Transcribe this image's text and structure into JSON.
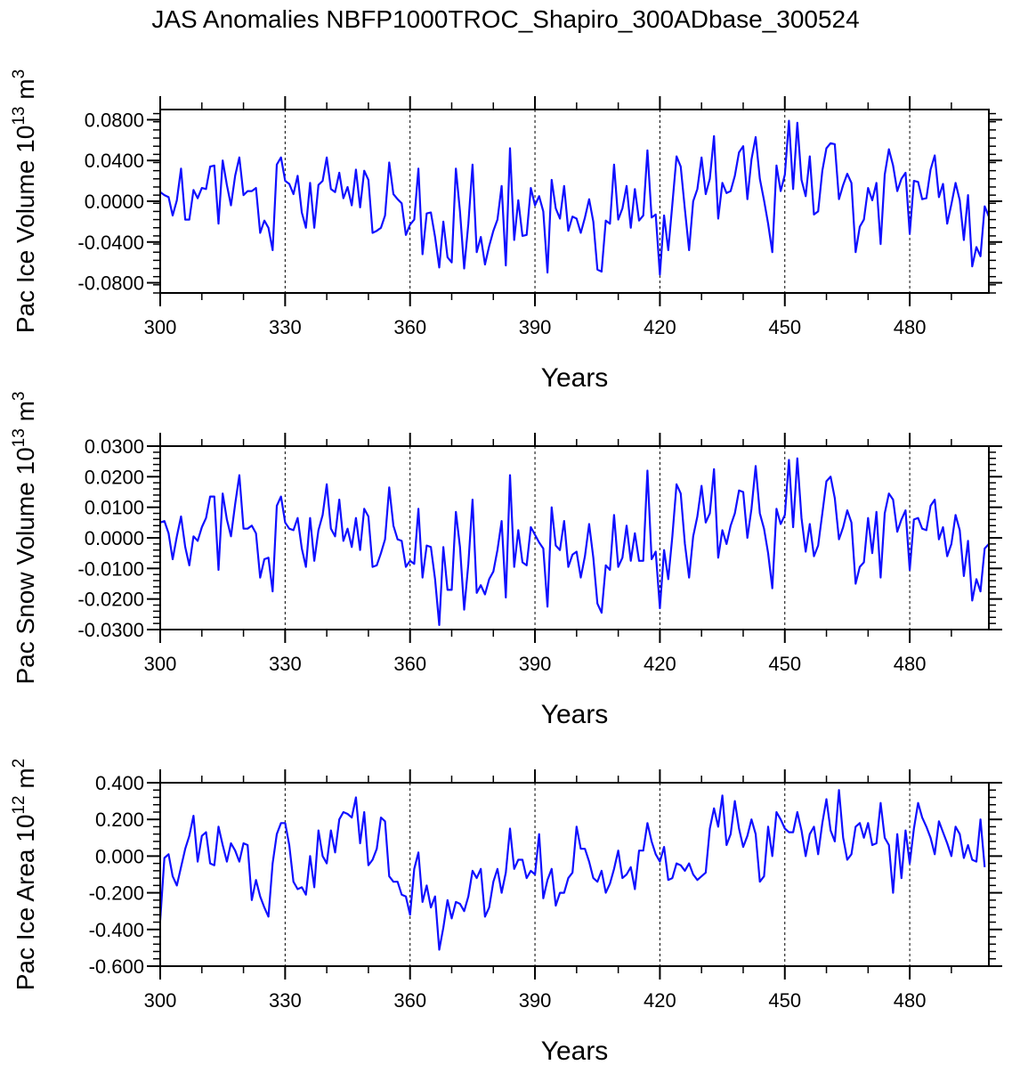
{
  "title": "JAS Anomalies NBFP1000TROC_Shapiro_300ADbase_300524",
  "line_color": "#1010ff",
  "chart_data": [
    {
      "type": "line",
      "ylabel": "Pac Ice Volume 10",
      "ylabel_exp": "13",
      "ylabel_unit": " m",
      "ylabel_unit_exp": "3",
      "xlabel": "Years",
      "xlim": [
        300,
        499
      ],
      "ylim": [
        -0.09,
        0.09
      ],
      "yticks": [
        -0.08,
        -0.04,
        0.0,
        0.04,
        0.08
      ],
      "ytick_labels": [
        "-0.0800",
        "-0.0400",
        "0.0000",
        "0.0400",
        "0.0800"
      ],
      "xticks": [
        300,
        330,
        360,
        390,
        420,
        450,
        480
      ],
      "xtick_labels": [
        "300",
        "330",
        "360",
        "390",
        "420",
        "450",
        "480"
      ],
      "ref_lines": [
        330,
        360,
        390,
        420,
        450,
        480
      ],
      "x_start": 300,
      "series": [
        {
          "name": "Pac Ice Volume",
          "values": [
            0.009,
            0.006,
            0.004,
            -0.014,
            0.001,
            0.032,
            -0.018,
            -0.018,
            0.011,
            0.003,
            0.013,
            0.012,
            0.034,
            0.035,
            -0.022,
            0.04,
            0.016,
            -0.004,
            0.025,
            0.043,
            0.006,
            0.01,
            0.01,
            0.013,
            -0.031,
            -0.019,
            -0.026,
            -0.048,
            0.036,
            0.043,
            0.02,
            0.017,
            0.007,
            0.025,
            -0.011,
            -0.026,
            0.018,
            -0.026,
            0.016,
            0.02,
            0.043,
            0.012,
            0.009,
            0.028,
            0.003,
            0.014,
            -0.004,
            0.031,
            -0.006,
            0.03,
            0.021,
            -0.031,
            -0.029,
            -0.026,
            -0.014,
            0.038,
            0.007,
            0.002,
            -0.002,
            -0.033,
            -0.023,
            -0.018,
            0.032,
            -0.052,
            -0.012,
            -0.011,
            -0.035,
            -0.065,
            -0.02,
            -0.055,
            -0.06,
            0.032,
            -0.01,
            -0.066,
            -0.022,
            0.036,
            -0.05,
            -0.035,
            -0.062,
            -0.044,
            -0.029,
            -0.018,
            0.015,
            -0.063,
            0.052,
            -0.038,
            0.001,
            -0.034,
            -0.033,
            0.013,
            -0.004,
            0.005,
            -0.01,
            -0.07,
            0.021,
            -0.007,
            -0.017,
            0.015,
            -0.029,
            -0.015,
            -0.017,
            -0.031,
            -0.016,
            0.002,
            -0.02,
            -0.067,
            -0.069,
            -0.019,
            -0.022,
            0.036,
            -0.018,
            -0.007,
            0.015,
            -0.026,
            0.012,
            -0.019,
            -0.014,
            0.05,
            -0.016,
            -0.013,
            -0.072,
            -0.014,
            -0.048,
            -0.003,
            0.044,
            0.034,
            -0.008,
            -0.048,
            0.0,
            0.012,
            0.043,
            0.007,
            0.022,
            0.064,
            -0.017,
            0.018,
            0.008,
            0.01,
            0.025,
            0.048,
            0.054,
            0.002,
            0.041,
            0.063,
            0.022,
            0.001,
            -0.022,
            -0.05,
            0.035,
            0.01,
            0.026,
            0.079,
            0.012,
            0.077,
            0.021,
            0.005,
            0.044,
            -0.013,
            -0.01,
            0.03,
            0.052,
            0.057,
            0.056,
            0.002,
            0.016,
            0.027,
            0.018,
            -0.05,
            -0.025,
            -0.018,
            0.013,
            0.001,
            0.018,
            -0.042,
            0.026,
            0.051,
            0.035,
            0.01,
            0.022,
            0.028,
            -0.032,
            0.02,
            0.019,
            0.002,
            0.003,
            0.031,
            0.045,
            0.004,
            0.017,
            -0.022,
            -0.003,
            0.018,
            0.001,
            -0.038,
            0.006,
            -0.064,
            -0.045,
            -0.054,
            -0.005,
            -0.015
          ]
        }
      ]
    },
    {
      "type": "line",
      "ylabel": "Pac Snow Volume 10",
      "ylabel_exp": "13",
      "ylabel_unit": " m",
      "ylabel_unit_exp": "3",
      "xlabel": "Years",
      "xlim": [
        300,
        499
      ],
      "ylim": [
        -0.03,
        0.03
      ],
      "yticks": [
        -0.03,
        -0.02,
        -0.01,
        0.0,
        0.01,
        0.02,
        0.03
      ],
      "ytick_labels": [
        "-0.0300",
        "-0.0200",
        "-0.0100",
        "0.0000",
        "0.0100",
        "0.0200",
        "0.0300"
      ],
      "xticks": [
        300,
        330,
        360,
        390,
        420,
        450,
        480
      ],
      "xtick_labels": [
        "300",
        "330",
        "360",
        "390",
        "420",
        "450",
        "480"
      ],
      "ref_lines": [
        330,
        360,
        390,
        420,
        450,
        480
      ],
      "x_start": 300,
      "series": [
        {
          "name": "Pac Snow Volume",
          "values": [
            0.005,
            0.0055,
            0.0015,
            -0.007,
            0.0005,
            0.007,
            -0.003,
            -0.009,
            0.0005,
            -0.001,
            0.0035,
            0.0065,
            0.0135,
            0.0135,
            -0.0105,
            0.0145,
            0.006,
            0.0005,
            0.011,
            0.0205,
            0.003,
            0.003,
            0.004,
            0.0015,
            -0.013,
            -0.007,
            -0.0065,
            -0.0175,
            0.0105,
            0.0135,
            0.005,
            0.003,
            0.0025,
            0.0065,
            -0.0035,
            -0.0095,
            0.0065,
            -0.0075,
            0.0025,
            0.0075,
            0.0175,
            0.003,
            0.0005,
            0.0125,
            -0.001,
            0.003,
            -0.003,
            0.0065,
            -0.004,
            0.0095,
            0.007,
            -0.0095,
            -0.009,
            -0.005,
            -0.0005,
            0.0165,
            0.004,
            -0.0005,
            -0.001,
            -0.0095,
            -0.0075,
            -0.0085,
            0.0095,
            -0.013,
            -0.0025,
            -0.003,
            -0.0135,
            -0.0285,
            -0.003,
            -0.017,
            -0.017,
            0.0085,
            -0.003,
            -0.0235,
            -0.0085,
            0.0125,
            -0.018,
            -0.0155,
            -0.0185,
            -0.0135,
            -0.011,
            -0.004,
            0.0055,
            -0.0195,
            0.0205,
            -0.0095,
            0.0025,
            -0.008,
            -0.009,
            0.0035,
            0.001,
            -0.0015,
            -0.0035,
            -0.0225,
            0.01,
            -0.0025,
            -0.004,
            0.0055,
            -0.0095,
            -0.0055,
            -0.0045,
            -0.013,
            -0.006,
            0.0045,
            -0.0065,
            -0.0215,
            -0.0245,
            -0.009,
            -0.0105,
            0.0075,
            -0.0095,
            -0.0065,
            0.004,
            -0.0075,
            0.0015,
            -0.0075,
            -0.0075,
            0.022,
            -0.007,
            -0.0045,
            -0.023,
            -0.004,
            -0.0135,
            0.0005,
            0.0175,
            0.0145,
            -0.002,
            -0.013,
            0.0005,
            0.007,
            0.017,
            0.005,
            0.008,
            0.0225,
            -0.0065,
            0.0025,
            -0.002,
            0.004,
            0.008,
            0.0155,
            0.015,
            0.0,
            0.0095,
            0.0235,
            0.008,
            0.003,
            -0.005,
            -0.0165,
            0.0095,
            0.0045,
            0.0075,
            0.0255,
            0.0035,
            0.026,
            0.0065,
            -0.0045,
            0.0045,
            -0.006,
            -0.0025,
            0.008,
            0.0185,
            0.02,
            0.013,
            -0.0005,
            0.0035,
            0.009,
            0.005,
            -0.015,
            -0.0095,
            -0.008,
            0.0065,
            -0.005,
            0.0085,
            -0.013,
            0.008,
            0.0145,
            0.0125,
            0.002,
            0.006,
            0.009,
            -0.0105,
            0.006,
            0.0065,
            0.003,
            0.0025,
            0.0105,
            0.0125,
            -0.0005,
            0.0035,
            -0.006,
            -0.002,
            0.0075,
            0.0025,
            -0.0125,
            -0.001,
            -0.0205,
            -0.0135,
            -0.0175,
            -0.0035,
            -0.002
          ]
        }
      ]
    },
    {
      "type": "line",
      "ylabel": "Pac Ice Area 10",
      "ylabel_exp": "12",
      "ylabel_unit": " m",
      "ylabel_unit_exp": "2",
      "xlabel": "Years",
      "xlim": [
        300,
        499
      ],
      "ylim": [
        -0.6,
        0.4
      ],
      "yticks": [
        -0.6,
        -0.4,
        -0.2,
        0.0,
        0.2,
        0.4
      ],
      "ytick_labels": [
        "-0.600",
        "-0.400",
        "-0.200",
        "0.000",
        "0.200",
        "0.400"
      ],
      "xticks": [
        300,
        330,
        360,
        390,
        420,
        450,
        480
      ],
      "xtick_labels": [
        "300",
        "330",
        "360",
        "390",
        "420",
        "450",
        "480"
      ],
      "ref_lines": [
        330,
        360,
        390,
        420,
        450,
        480
      ],
      "x_start": 300,
      "series": [
        {
          "name": "Pac Ice Area",
          "values": [
            -0.35,
            -0.01,
            0.01,
            -0.11,
            -0.16,
            -0.06,
            0.04,
            0.11,
            0.22,
            -0.03,
            0.11,
            0.13,
            -0.04,
            -0.05,
            0.16,
            0.06,
            -0.03,
            0.07,
            0.03,
            -0.03,
            0.07,
            0.06,
            -0.24,
            -0.13,
            -0.22,
            -0.28,
            -0.33,
            -0.04,
            0.12,
            0.18,
            0.18,
            0.06,
            -0.14,
            -0.18,
            -0.17,
            -0.21,
            0.0,
            -0.17,
            0.14,
            0.0,
            -0.04,
            0.14,
            0.02,
            0.2,
            0.24,
            0.23,
            0.21,
            0.32,
            0.07,
            0.24,
            -0.05,
            -0.02,
            0.04,
            0.21,
            0.19,
            -0.11,
            -0.14,
            -0.14,
            -0.21,
            -0.22,
            -0.32,
            -0.07,
            0.02,
            -0.25,
            -0.16,
            -0.28,
            -0.22,
            -0.51,
            -0.39,
            -0.24,
            -0.34,
            -0.25,
            -0.26,
            -0.3,
            -0.22,
            -0.08,
            -0.12,
            -0.07,
            -0.33,
            -0.28,
            -0.14,
            -0.07,
            -0.2,
            -0.09,
            0.15,
            -0.07,
            -0.02,
            -0.02,
            -0.12,
            -0.08,
            -0.1,
            0.12,
            -0.23,
            -0.13,
            -0.07,
            -0.27,
            -0.2,
            -0.2,
            -0.12,
            -0.09,
            0.16,
            0.04,
            0.04,
            -0.03,
            -0.12,
            -0.14,
            -0.08,
            -0.2,
            -0.15,
            -0.07,
            0.03,
            -0.12,
            -0.1,
            -0.06,
            -0.18,
            0.03,
            0.03,
            0.18,
            0.08,
            0.01,
            -0.03,
            0.05,
            -0.13,
            -0.12,
            -0.04,
            -0.05,
            -0.08,
            -0.04,
            -0.1,
            -0.13,
            -0.11,
            -0.09,
            0.15,
            0.26,
            0.16,
            0.33,
            0.06,
            0.12,
            0.3,
            0.15,
            0.05,
            0.11,
            0.2,
            0.12,
            -0.14,
            -0.11,
            0.16,
            0.0,
            0.24,
            0.2,
            0.15,
            0.13,
            0.13,
            0.24,
            0.14,
            0.0,
            0.12,
            0.16,
            0.01,
            0.18,
            0.31,
            0.14,
            0.08,
            0.36,
            0.1,
            -0.02,
            0.01,
            0.16,
            0.18,
            0.1,
            0.18,
            0.06,
            0.07,
            0.29,
            0.1,
            0.06,
            -0.2,
            0.12,
            -0.12,
            0.14,
            -0.04,
            0.15,
            0.29,
            0.21,
            0.16,
            0.1,
            0.01,
            0.19,
            0.13,
            0.07,
            0.0,
            0.16,
            0.12,
            -0.01,
            0.06,
            -0.02,
            -0.03,
            0.2,
            -0.06
          ]
        }
      ]
    }
  ]
}
